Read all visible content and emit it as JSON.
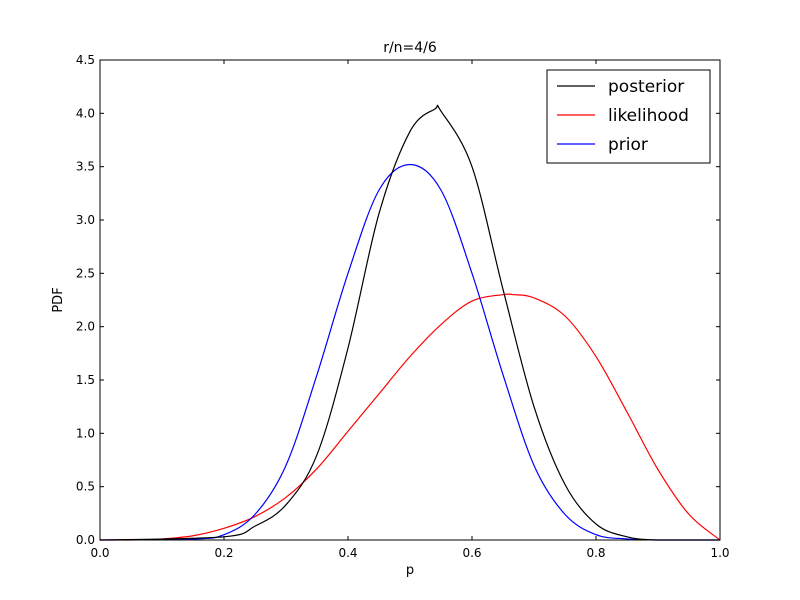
{
  "chart_data": {
    "type": "line",
    "title": "r/n=4/6",
    "xlabel": "p",
    "ylabel": "PDF",
    "xlim": [
      0.0,
      1.0
    ],
    "ylim": [
      0.0,
      4.5
    ],
    "x_ticks": [
      "0.0",
      "0.2",
      "0.4",
      "0.6",
      "0.8",
      "1.0"
    ],
    "y_ticks": [
      "0.0",
      "0.5",
      "1.0",
      "1.5",
      "2.0",
      "2.5",
      "3.0",
      "3.5",
      "4.0",
      "4.5"
    ],
    "grid": false,
    "legend_position": "top-right",
    "series": [
      {
        "name": "posterior",
        "color": "#000000",
        "x": [
          0.0,
          0.2,
          0.25,
          0.3,
          0.35,
          0.4,
          0.45,
          0.5,
          0.54,
          0.55,
          0.6,
          0.65,
          0.7,
          0.75,
          0.8,
          0.85,
          0.9,
          1.0
        ],
        "y": [
          0.0,
          0.03,
          0.13,
          0.33,
          0.8,
          1.8,
          3.06,
          3.83,
          4.04,
          4.02,
          3.5,
          2.35,
          1.25,
          0.52,
          0.15,
          0.03,
          0.0,
          0.0
        ]
      },
      {
        "name": "likelihood",
        "color": "#ff0000",
        "x": [
          0.0,
          0.05,
          0.1,
          0.15,
          0.2,
          0.25,
          0.3,
          0.35,
          0.4,
          0.45,
          0.5,
          0.55,
          0.6,
          0.65,
          0.667,
          0.7,
          0.75,
          0.8,
          0.85,
          0.9,
          0.95,
          1.0
        ],
        "y": [
          0.0,
          0.0,
          0.01,
          0.04,
          0.11,
          0.22,
          0.4,
          0.67,
          1.02,
          1.37,
          1.72,
          2.02,
          2.24,
          2.3,
          2.3,
          2.27,
          2.1,
          1.72,
          1.2,
          0.66,
          0.24,
          0.0
        ]
      },
      {
        "name": "prior",
        "color": "#0000ff",
        "x": [
          0.0,
          0.15,
          0.2,
          0.25,
          0.3,
          0.35,
          0.4,
          0.45,
          0.5,
          0.55,
          0.6,
          0.65,
          0.7,
          0.75,
          0.8,
          0.85,
          0.9,
          1.0
        ],
        "y": [
          0.0,
          0.01,
          0.05,
          0.24,
          0.7,
          1.55,
          2.5,
          3.28,
          3.52,
          3.28,
          2.5,
          1.55,
          0.7,
          0.24,
          0.05,
          0.01,
          0.0,
          0.0
        ]
      }
    ]
  }
}
